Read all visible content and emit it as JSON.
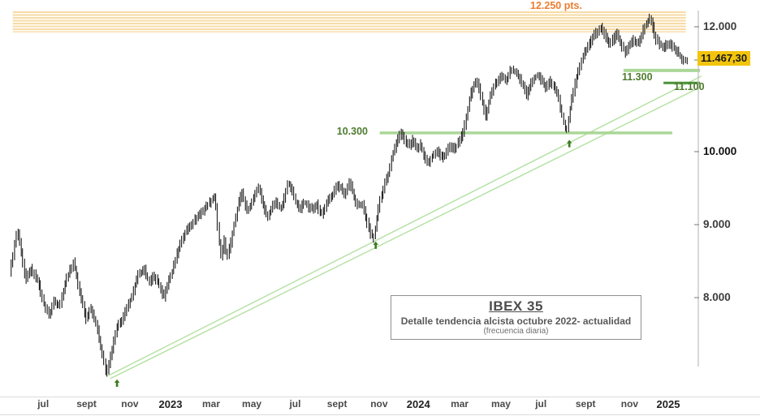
{
  "info_box": {
    "title": "IBEX 35",
    "subtitle": "Detalle tendencia alcista octubre 2022- actualidad",
    "note": "(frecuencia diaria)"
  },
  "annotations": {
    "resistance": {
      "label": "12.250 pts.",
      "price_top": 12250,
      "price_bottom": 11910,
      "f1": 0.002,
      "f2": 0.996,
      "color": "#F7DCA8"
    },
    "last_price": {
      "label": "11.467,30",
      "value": 11467.3,
      "bg": "#F2C40D"
    },
    "support_11300": {
      "label": "11.300",
      "value": 11300,
      "f1": 0.904,
      "f2": 1.017,
      "color": "#A4D490",
      "width": 4
    },
    "support_11100": {
      "label": "11.100",
      "value": 11100,
      "f1": 0.963,
      "f2": 1.017,
      "color": "#3B8A28",
      "width": 3
    },
    "support_10300": {
      "label": "10.300",
      "value": 10300,
      "f1": 0.544,
      "f2": 0.976,
      "color": "#A4D490",
      "width": 3.5
    },
    "trend_channel": {
      "color": "#ABDD96",
      "lines": [
        {
          "f1": 0.146,
          "v1": 6890,
          "f2": 1.019,
          "v2": 11040
        },
        {
          "f1": 0.143,
          "v1": 6930,
          "f2": 1.019,
          "v2": 11210
        }
      ]
    },
    "arrows": {
      "color": "#3E7A1F",
      "items": [
        {
          "f": 0.156,
          "v": 6880
        },
        {
          "f": 0.538,
          "v": 8770
        },
        {
          "f": 0.824,
          "v": 10190
        }
      ]
    }
  },
  "chart_data": {
    "type": "ohlc",
    "title": "IBEX 35",
    "subtitle": "Detalle tendencia alcista octubre 2022- actualidad (frecuencia diaria)",
    "bar_color": "#262626",
    "y_axis": {
      "ticks": [
        {
          "label": "12.000",
          "value": 12000,
          "bold": false
        },
        {
          "label": "10.000",
          "value": 10000,
          "bold": true
        },
        {
          "label": "9.000",
          "value": 9000,
          "bold": false
        },
        {
          "label": "8.000",
          "value": 8000,
          "bold": false
        }
      ],
      "extra_tick_values": [
        11467.3
      ]
    },
    "x_axis": {
      "ticks": [
        {
          "label": "jul",
          "f": 0.047,
          "bold": false
        },
        {
          "label": "sept",
          "f": 0.111,
          "bold": false
        },
        {
          "label": "nov",
          "f": 0.175,
          "bold": false
        },
        {
          "label": "2023",
          "f": 0.235,
          "bold": true
        },
        {
          "label": "mar",
          "f": 0.295,
          "bold": false
        },
        {
          "label": "may",
          "f": 0.355,
          "bold": false
        },
        {
          "label": "jul",
          "f": 0.419,
          "bold": false
        },
        {
          "label": "sept",
          "f": 0.481,
          "bold": false
        },
        {
          "label": "nov",
          "f": 0.543,
          "bold": false
        },
        {
          "label": "2024",
          "f": 0.601,
          "bold": true
        },
        {
          "label": "mar",
          "f": 0.662,
          "bold": false
        },
        {
          "label": "may",
          "f": 0.723,
          "bold": false
        },
        {
          "label": "jul",
          "f": 0.782,
          "bold": false
        },
        {
          "label": "sept",
          "f": 0.848,
          "bold": false
        },
        {
          "label": "nov",
          "f": 0.913,
          "bold": false
        },
        {
          "label": "2025",
          "f": 0.97,
          "bold": true
        }
      ]
    },
    "series": {
      "name": "IBEX 35 daily",
      "points": [
        [
          0.0,
          8320
        ],
        [
          0.011,
          8935
        ],
        [
          0.023,
          8245
        ],
        [
          0.031,
          8390
        ],
        [
          0.041,
          8245
        ],
        [
          0.049,
          7945
        ],
        [
          0.058,
          7745
        ],
        [
          0.065,
          7965
        ],
        [
          0.073,
          7880
        ],
        [
          0.083,
          8245
        ],
        [
          0.094,
          8490
        ],
        [
          0.103,
          8080
        ],
        [
          0.113,
          7690
        ],
        [
          0.119,
          7880
        ],
        [
          0.127,
          7655
        ],
        [
          0.135,
          7300
        ],
        [
          0.143,
          6945
        ],
        [
          0.151,
          7300
        ],
        [
          0.158,
          7580
        ],
        [
          0.165,
          7690
        ],
        [
          0.173,
          7855
        ],
        [
          0.181,
          8055
        ],
        [
          0.189,
          8300
        ],
        [
          0.199,
          8375
        ],
        [
          0.206,
          8210
        ],
        [
          0.213,
          8300
        ],
        [
          0.221,
          8165
        ],
        [
          0.227,
          7990
        ],
        [
          0.233,
          8190
        ],
        [
          0.24,
          8355
        ],
        [
          0.247,
          8610
        ],
        [
          0.255,
          8820
        ],
        [
          0.264,
          8965
        ],
        [
          0.272,
          9055
        ],
        [
          0.281,
          9155
        ],
        [
          0.289,
          9235
        ],
        [
          0.296,
          9320
        ],
        [
          0.303,
          9390
        ],
        [
          0.308,
          8855
        ],
        [
          0.312,
          8545
        ],
        [
          0.317,
          8800
        ],
        [
          0.32,
          8545
        ],
        [
          0.326,
          8745
        ],
        [
          0.332,
          9055
        ],
        [
          0.338,
          9320
        ],
        [
          0.343,
          9445
        ],
        [
          0.349,
          9210
        ],
        [
          0.355,
          9245
        ],
        [
          0.361,
          9410
        ],
        [
          0.367,
          9520
        ],
        [
          0.374,
          9280
        ],
        [
          0.38,
          9100
        ],
        [
          0.387,
          9245
        ],
        [
          0.393,
          9320
        ],
        [
          0.4,
          9210
        ],
        [
          0.405,
          9355
        ],
        [
          0.411,
          9580
        ],
        [
          0.417,
          9465
        ],
        [
          0.423,
          9280
        ],
        [
          0.429,
          9210
        ],
        [
          0.435,
          9320
        ],
        [
          0.441,
          9245
        ],
        [
          0.447,
          9210
        ],
        [
          0.453,
          9280
        ],
        [
          0.459,
          9135
        ],
        [
          0.465,
          9210
        ],
        [
          0.471,
          9355
        ],
        [
          0.477,
          9410
        ],
        [
          0.483,
          9545
        ],
        [
          0.489,
          9500
        ],
        [
          0.495,
          9410
        ],
        [
          0.502,
          9580
        ],
        [
          0.508,
          9390
        ],
        [
          0.514,
          9245
        ],
        [
          0.52,
          9300
        ],
        [
          0.526,
          9080
        ],
        [
          0.532,
          8880
        ],
        [
          0.537,
          8820
        ],
        [
          0.542,
          9080
        ],
        [
          0.547,
          9355
        ],
        [
          0.553,
          9545
        ],
        [
          0.559,
          9690
        ],
        [
          0.565,
          9965
        ],
        [
          0.571,
          10155
        ],
        [
          0.577,
          10310
        ],
        [
          0.583,
          10195
        ],
        [
          0.589,
          10090
        ],
        [
          0.595,
          10195
        ],
        [
          0.601,
          10025
        ],
        [
          0.607,
          10115
        ],
        [
          0.613,
          9910
        ],
        [
          0.619,
          9855
        ],
        [
          0.625,
          9965
        ],
        [
          0.631,
          10025
        ],
        [
          0.637,
          9910
        ],
        [
          0.643,
          9965
        ],
        [
          0.649,
          10090
        ],
        [
          0.655,
          10025
        ],
        [
          0.661,
          10115
        ],
        [
          0.667,
          10245
        ],
        [
          0.673,
          10480
        ],
        [
          0.679,
          10870
        ],
        [
          0.685,
          11065
        ],
        [
          0.691,
          11130
        ],
        [
          0.697,
          10805
        ],
        [
          0.703,
          10570
        ],
        [
          0.709,
          10870
        ],
        [
          0.715,
          11065
        ],
        [
          0.721,
          11130
        ],
        [
          0.727,
          11220
        ],
        [
          0.733,
          11130
        ],
        [
          0.739,
          11325
        ],
        [
          0.745,
          11285
        ],
        [
          0.751,
          11195
        ],
        [
          0.757,
          11065
        ],
        [
          0.763,
          10895
        ],
        [
          0.769,
          11065
        ],
        [
          0.774,
          11195
        ],
        [
          0.78,
          11220
        ],
        [
          0.786,
          11130
        ],
        [
          0.792,
          11025
        ],
        [
          0.798,
          11130
        ],
        [
          0.804,
          11025
        ],
        [
          0.81,
          10870
        ],
        [
          0.816,
          10545
        ],
        [
          0.822,
          10310
        ],
        [
          0.828,
          10740
        ],
        [
          0.834,
          11065
        ],
        [
          0.84,
          11325
        ],
        [
          0.846,
          11520
        ],
        [
          0.852,
          11650
        ],
        [
          0.858,
          11780
        ],
        [
          0.864,
          11885
        ],
        [
          0.873,
          11975
        ],
        [
          0.879,
          11845
        ],
        [
          0.885,
          11715
        ],
        [
          0.891,
          11805
        ],
        [
          0.897,
          11885
        ],
        [
          0.903,
          11715
        ],
        [
          0.909,
          11585
        ],
        [
          0.915,
          11715
        ],
        [
          0.921,
          11805
        ],
        [
          0.927,
          11715
        ],
        [
          0.933,
          11885
        ],
        [
          0.939,
          12040
        ],
        [
          0.945,
          12145
        ],
        [
          0.95,
          11975
        ],
        [
          0.954,
          11805
        ],
        [
          0.96,
          11715
        ],
        [
          0.966,
          11650
        ],
        [
          0.972,
          11755
        ],
        [
          0.978,
          11675
        ],
        [
          0.984,
          11625
        ],
        [
          0.99,
          11520
        ],
        [
          0.996,
          11467
        ]
      ]
    }
  }
}
